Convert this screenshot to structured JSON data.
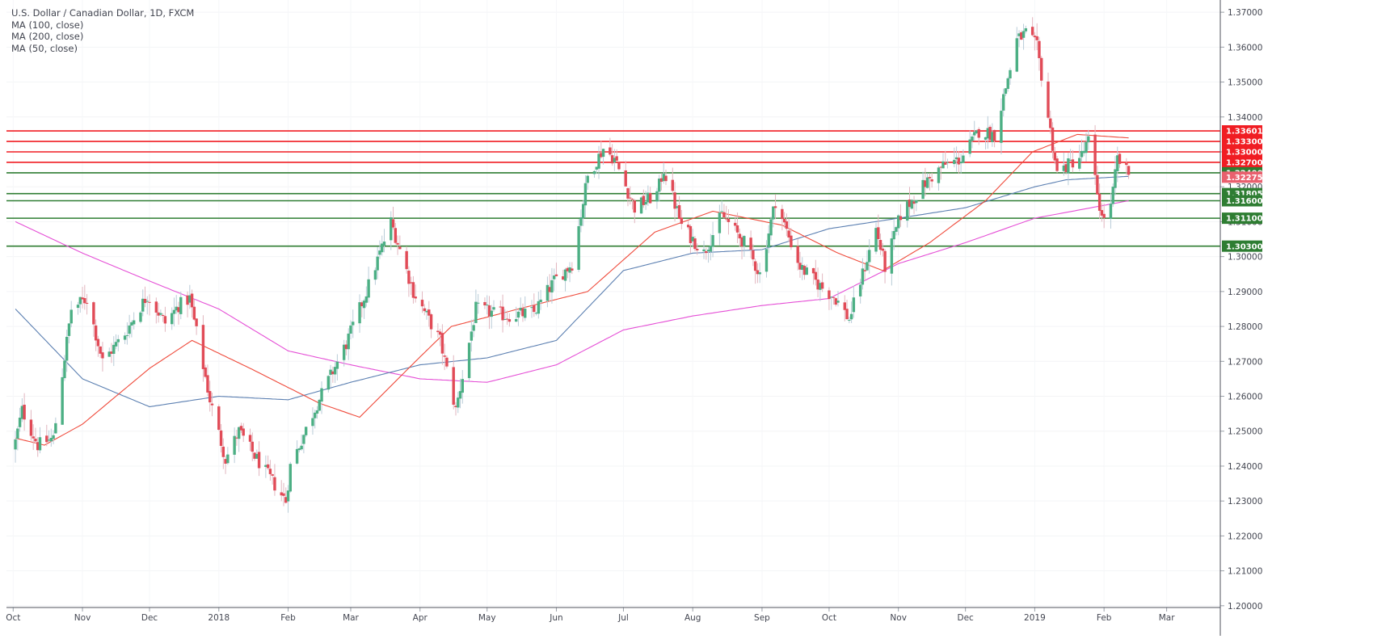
{
  "chart_data": {
    "type": "candlestick",
    "title": "U.S. Dollar / Canadian Dollar, 1D, FXCM",
    "indicators": [
      "MA (100, close)",
      "MA (200, close)",
      "MA (50, close)"
    ],
    "ylim": [
      1.1995,
      1.3735
    ],
    "y_ticks": [
      "1.37000",
      "1.36000",
      "1.35000",
      "1.34000",
      "1.33000",
      "1.32000",
      "1.31000",
      "1.30000",
      "1.29000",
      "1.28000",
      "1.27000",
      "1.26000",
      "1.25000",
      "1.24000",
      "1.23000",
      "1.22000",
      "1.21000",
      "1.20000"
    ],
    "x_ticks": [
      "Oct",
      "Nov",
      "Dec",
      "2018",
      "Feb",
      "Mar",
      "Apr",
      "May",
      "Jun",
      "Jul",
      "Aug",
      "Sep",
      "Oct",
      "Nov",
      "Dec",
      "2019",
      "Feb",
      "Mar"
    ],
    "price_anchors": [
      [
        "2017-10-02",
        1.247
      ],
      [
        "2017-10-05",
        1.256
      ],
      [
        "2017-10-12",
        1.246
      ],
      [
        "2017-10-19",
        1.248
      ],
      [
        "2017-10-27",
        1.285
      ],
      [
        "2017-11-03",
        1.288
      ],
      [
        "2017-11-10",
        1.27
      ],
      [
        "2017-11-20",
        1.278
      ],
      [
        "2017-11-30",
        1.289
      ],
      [
        "2017-12-08",
        1.281
      ],
      [
        "2017-12-14",
        1.286
      ],
      [
        "2017-12-19",
        1.288
      ],
      [
        "2017-12-28",
        1.259
      ],
      [
        "2018-01-04",
        1.242
      ],
      [
        "2018-01-10",
        1.25
      ],
      [
        "2018-01-18",
        1.242
      ],
      [
        "2018-01-31",
        1.23
      ],
      [
        "2018-02-02",
        1.24
      ],
      [
        "2018-02-14",
        1.258
      ],
      [
        "2018-02-27",
        1.275
      ],
      [
        "2018-03-08",
        1.29
      ],
      [
        "2018-03-19",
        1.31
      ],
      [
        "2018-03-29",
        1.29
      ],
      [
        "2018-04-10",
        1.276
      ],
      [
        "2018-04-17",
        1.256
      ],
      [
        "2018-04-26",
        1.285
      ],
      [
        "2018-05-10",
        1.283
      ],
      [
        "2018-05-22",
        1.284
      ],
      [
        "2018-05-31",
        1.293
      ],
      [
        "2018-06-08",
        1.298
      ],
      [
        "2018-06-15",
        1.323
      ],
      [
        "2018-06-22",
        1.331
      ],
      [
        "2018-06-27",
        1.328
      ],
      [
        "2018-07-06",
        1.314
      ],
      [
        "2018-07-16",
        1.318
      ],
      [
        "2018-07-19",
        1.325
      ],
      [
        "2018-07-27",
        1.309
      ],
      [
        "2018-08-06",
        1.301
      ],
      [
        "2018-08-14",
        1.312
      ],
      [
        "2018-08-24",
        1.304
      ],
      [
        "2018-08-31",
        1.295
      ],
      [
        "2018-09-07",
        1.316
      ],
      [
        "2018-09-18",
        1.297
      ],
      [
        "2018-09-28",
        1.291
      ],
      [
        "2018-10-04",
        1.288
      ],
      [
        "2018-10-10",
        1.282
      ],
      [
        "2018-10-22",
        1.308
      ],
      [
        "2018-10-26",
        1.297
      ],
      [
        "2018-11-02",
        1.312
      ],
      [
        "2018-11-13",
        1.321
      ],
      [
        "2018-11-21",
        1.326
      ],
      [
        "2018-11-29",
        1.328
      ],
      [
        "2018-12-07",
        1.336
      ],
      [
        "2018-12-14",
        1.335
      ],
      [
        "2018-12-24",
        1.362
      ],
      [
        "2018-12-28",
        1.364
      ],
      [
        "2019-01-02",
        1.36
      ],
      [
        "2019-01-11",
        1.324
      ],
      [
        "2019-01-22",
        1.329
      ],
      [
        "2019-01-25",
        1.333
      ],
      [
        "2019-01-31",
        1.311
      ],
      [
        "2019-02-04",
        1.314
      ],
      [
        "2019-02-07",
        1.328
      ],
      [
        "2019-02-12",
        1.3235
      ]
    ],
    "ma100": [
      [
        "2017-10-02",
        1.285
      ],
      [
        "2017-11-01",
        1.265
      ],
      [
        "2017-12-01",
        1.257
      ],
      [
        "2018-01-01",
        1.26
      ],
      [
        "2018-02-01",
        1.259
      ],
      [
        "2018-03-01",
        1.264
      ],
      [
        "2018-04-01",
        1.269
      ],
      [
        "2018-05-01",
        1.271
      ],
      [
        "2018-06-01",
        1.276
      ],
      [
        "2018-07-01",
        1.296
      ],
      [
        "2018-08-01",
        1.301
      ],
      [
        "2018-09-01",
        1.302
      ],
      [
        "2018-10-01",
        1.308
      ],
      [
        "2018-11-01",
        1.311
      ],
      [
        "2018-12-01",
        1.314
      ],
      [
        "2019-01-01",
        1.32
      ],
      [
        "2019-01-15",
        1.322
      ],
      [
        "2019-02-12",
        1.323
      ]
    ],
    "ma200": [
      [
        "2017-10-02",
        1.31
      ],
      [
        "2017-11-01",
        1.301
      ],
      [
        "2017-12-01",
        1.293
      ],
      [
        "2018-01-01",
        1.285
      ],
      [
        "2018-02-01",
        1.273
      ],
      [
        "2018-03-01",
        1.269
      ],
      [
        "2018-04-01",
        1.265
      ],
      [
        "2018-05-01",
        1.264
      ],
      [
        "2018-06-01",
        1.269
      ],
      [
        "2018-07-01",
        1.279
      ],
      [
        "2018-08-01",
        1.283
      ],
      [
        "2018-09-01",
        1.286
      ],
      [
        "2018-10-01",
        1.288
      ],
      [
        "2018-11-01",
        1.298
      ],
      [
        "2018-12-01",
        1.304
      ],
      [
        "2019-01-01",
        1.311
      ],
      [
        "2019-02-12",
        1.316
      ]
    ],
    "ma50": [
      [
        "2017-10-02",
        1.248
      ],
      [
        "2017-10-15",
        1.246
      ],
      [
        "2017-11-01",
        1.252
      ],
      [
        "2017-12-01",
        1.268
      ],
      [
        "2017-12-20",
        1.276
      ],
      [
        "2018-01-15",
        1.268
      ],
      [
        "2018-02-15",
        1.258
      ],
      [
        "2018-03-05",
        1.254
      ],
      [
        "2018-03-30",
        1.27
      ],
      [
        "2018-04-15",
        1.28
      ],
      [
        "2018-05-15",
        1.285
      ],
      [
        "2018-06-15",
        1.29
      ],
      [
        "2018-07-15",
        1.307
      ],
      [
        "2018-08-10",
        1.313
      ],
      [
        "2018-09-10",
        1.309
      ],
      [
        "2018-10-05",
        1.301
      ],
      [
        "2018-10-25",
        1.296
      ],
      [
        "2018-11-15",
        1.304
      ],
      [
        "2018-12-10",
        1.316
      ],
      [
        "2018-12-31",
        1.33
      ],
      [
        "2019-01-20",
        1.335
      ],
      [
        "2019-02-12",
        1.334
      ]
    ],
    "series_colors": {
      "up": "#4caf84",
      "down": "#e14b57",
      "ma100": "#5b7fb1",
      "ma200": "#e54fd6",
      "ma50": "#ef4a3b"
    },
    "levels": [
      {
        "value": 1.33601,
        "label": "1.33601",
        "color": "#f01d23"
      },
      {
        "value": 1.333,
        "label": "1.33300",
        "color": "#f01d23"
      },
      {
        "value": 1.33,
        "label": "1.33000",
        "color": "#f01d23"
      },
      {
        "value": 1.327,
        "label": "1.32700",
        "color": "#f01d23"
      },
      {
        "value": 1.324,
        "label": "1.32400",
        "color": "#2e7d32"
      },
      {
        "value": 1.32275,
        "label": "1.32275",
        "color": "#e9606e",
        "is_price": true
      },
      {
        "value": 1.31805,
        "label": "1.31805",
        "color": "#2e7d32"
      },
      {
        "value": 1.316,
        "label": "1.31600",
        "color": "#2e7d32"
      },
      {
        "value": 1.311,
        "label": "1.31100",
        "color": "#2e7d32"
      },
      {
        "value": 1.303,
        "label": "1.30300",
        "color": "#2e7d32"
      }
    ]
  }
}
